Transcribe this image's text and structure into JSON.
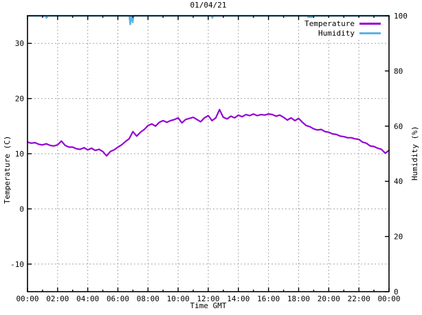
{
  "chart_data": {
    "type": "line",
    "title": "01/04/21",
    "xlabel": "Time GMT",
    "ylabel_left": "Temperature (C)",
    "ylabel_right": "Humidity (%)",
    "x_range_hours": [
      0,
      24
    ],
    "y_left_range": [
      -15,
      35
    ],
    "y_right_range": [
      0,
      100
    ],
    "x_major_tick_labels": [
      "00:00",
      "02:00",
      "04:00",
      "06:00",
      "08:00",
      "10:00",
      "12:00",
      "14:00",
      "16:00",
      "18:00",
      "20:00",
      "22:00",
      "00:00"
    ],
    "x_major_step_hours": 2,
    "x_minor_step_hours": 1,
    "y_left_major_ticks": [
      30,
      20,
      10,
      0,
      -10
    ],
    "y_right_major_ticks": [
      100,
      80,
      60,
      40,
      20,
      0
    ],
    "grid": true,
    "grid_color": "#a6a6a6",
    "legend_position": "top-right",
    "series": [
      {
        "name": "Temperature",
        "color": "#9400d3",
        "axis": "left",
        "step_minutes": 15,
        "start_hour": 0,
        "values": [
          12.1,
          11.9,
          12.0,
          11.7,
          11.6,
          11.8,
          11.5,
          11.4,
          11.6,
          12.3,
          11.5,
          11.2,
          11.2,
          10.9,
          10.8,
          11.1,
          10.7,
          11.0,
          10.6,
          10.8,
          10.4,
          9.6,
          10.4,
          10.7,
          11.2,
          11.6,
          12.2,
          12.7,
          14.0,
          13.2,
          13.9,
          14.4,
          15.1,
          15.4,
          15.0,
          15.7,
          16.0,
          15.7,
          16.0,
          16.2,
          16.5,
          15.6,
          16.2,
          16.4,
          16.6,
          16.2,
          15.8,
          16.5,
          16.9,
          16.0,
          16.5,
          18.0,
          16.6,
          16.3,
          16.8,
          16.5,
          17.0,
          16.7,
          17.1,
          16.9,
          17.2,
          16.9,
          17.1,
          17.0,
          17.2,
          17.1,
          16.8,
          17.0,
          16.6,
          16.1,
          16.5,
          16.0,
          16.4,
          15.7,
          15.1,
          14.9,
          14.5,
          14.3,
          14.4,
          14.0,
          13.9,
          13.6,
          13.5,
          13.2,
          13.1,
          12.9,
          12.9,
          12.7,
          12.6,
          12.1,
          11.9,
          11.4,
          11.3,
          11.0,
          10.8,
          10.1,
          10.6
        ]
      },
      {
        "name": "Humidity",
        "color": "#5ab4e5",
        "axis": "right",
        "baseline": 100,
        "dips": [
          {
            "hour": 1.27,
            "value": 99.2
          },
          {
            "hour": 6.82,
            "value": 96.9
          },
          {
            "hour": 6.98,
            "value": 97.6
          },
          {
            "hour": 12.27,
            "value": 99.3
          },
          {
            "hour": 18.68,
            "value": 97.2
          },
          {
            "hour": 18.86,
            "value": 96.6
          }
        ]
      }
    ]
  }
}
